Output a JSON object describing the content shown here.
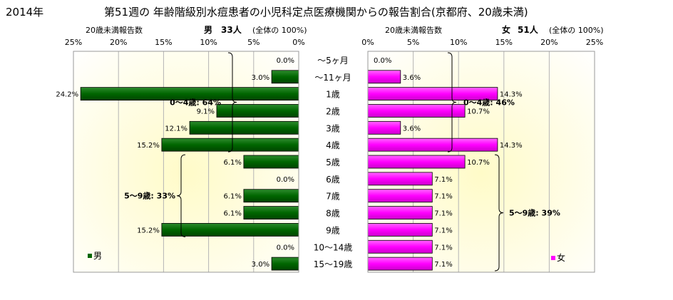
{
  "header": {
    "year": "2014年",
    "title": "第51週の 年齢階級別水痘患者の小児科定点医療機関からの報告割合(京都府、20歳未満)"
  },
  "chart_data": [
    {
      "type": "bar",
      "orientation": "horizontal",
      "direction": "right-to-left",
      "panel": "male",
      "axis_caption": "20歳未満報告数",
      "summary_label": "男",
      "summary_count": "33人",
      "summary_share": "(全体の 100%)",
      "xlim": [
        0,
        25
      ],
      "ticks": [
        "0%",
        "5%",
        "10%",
        "15%",
        "20%",
        "25%"
      ],
      "categories": [
        "～5ヶ月",
        "～11ヶ月",
        "1歳",
        "2歳",
        "3歳",
        "4歳",
        "5歳",
        "6歳",
        "7歳",
        "8歳",
        "9歳",
        "10～14歳",
        "15～19歳"
      ],
      "values": [
        0.0,
        3.0,
        24.2,
        9.1,
        12.1,
        15.2,
        6.1,
        0.0,
        6.1,
        6.1,
        15.2,
        0.0,
        3.0
      ],
      "value_labels": [
        "0.0%",
        "3.0%",
        "24.2%",
        "9.1%",
        "12.1%",
        "15.2%",
        "6.1%",
        "0.0%",
        "6.1%",
        "6.1%",
        "15.2%",
        "0.0%",
        "3.0%"
      ],
      "legend": "男",
      "legend_position": "bottom-left",
      "grid": true,
      "bar_color": "#006600",
      "annotations": [
        {
          "label": "0～4歳: 64%",
          "from": 0,
          "to": 5
        },
        {
          "label": "5～9歳: 33%",
          "from": 6,
          "to": 10
        }
      ]
    },
    {
      "type": "bar",
      "orientation": "horizontal",
      "direction": "left-to-right",
      "panel": "female",
      "axis_caption": "20歳未満報告数",
      "summary_label": "女",
      "summary_count": "51人",
      "summary_share": "(全体の 100%)",
      "xlim": [
        0,
        25
      ],
      "ticks": [
        "0%",
        "5%",
        "10%",
        "15%",
        "20%",
        "25%"
      ],
      "values": [
        0.0,
        3.6,
        14.3,
        10.7,
        3.6,
        14.3,
        10.7,
        7.1,
        7.1,
        7.1,
        7.1,
        7.1,
        7.1
      ],
      "value_labels": [
        "0.0%",
        "3.6%",
        "14.3%",
        "10.7%",
        "3.6%",
        "14.3%",
        "10.7%",
        "7.1%",
        "7.1%",
        "7.1%",
        "7.1%",
        "7.1%",
        "7.1%"
      ],
      "legend": "女",
      "legend_position": "bottom-right",
      "grid": true,
      "bar_color": "#ff00ff",
      "annotations": [
        {
          "label": "0～4歳: 46%",
          "from": 0,
          "to": 5
        },
        {
          "label": "5～9歳: 39%",
          "from": 6,
          "to": 12
        }
      ]
    }
  ]
}
